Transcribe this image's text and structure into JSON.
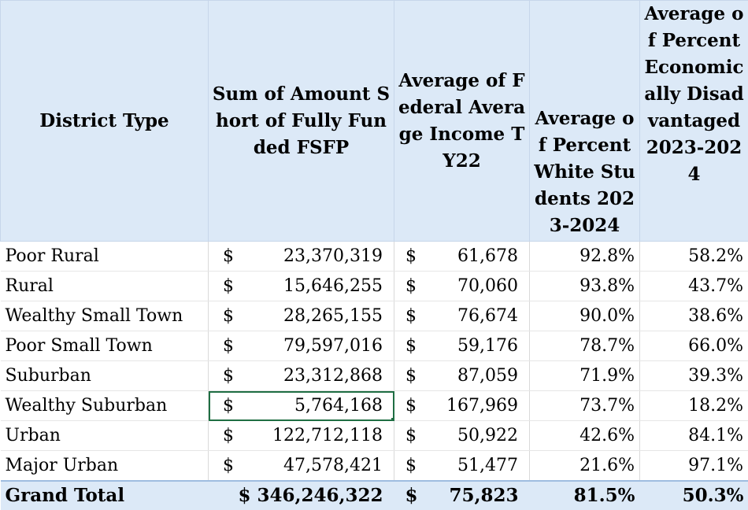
{
  "headers": {
    "district_type": "District Type",
    "sum_short": "Sum of Amount Short of Fully Funded FSFP",
    "avg_income": "Average of Federal Average Income TY22",
    "pct_white": "Average of Percent White Students 2023-2024",
    "pct_econ": "Average of Percent Economically Disadvantaged 2023-2024"
  },
  "currency_symbol": "$",
  "rows": [
    {
      "name": "Poor Rural",
      "sum": "23,370,319",
      "income": "61,678",
      "white": "92.8%",
      "econ": "58.2%"
    },
    {
      "name": "Rural",
      "sum": "15,646,255",
      "income": "70,060",
      "white": "93.8%",
      "econ": "43.7%"
    },
    {
      "name": "Wealthy Small Town",
      "sum": "28,265,155",
      "income": "76,674",
      "white": "90.0%",
      "econ": "38.6%"
    },
    {
      "name": "Poor Small Town",
      "sum": "79,597,016",
      "income": "59,176",
      "white": "78.7%",
      "econ": "66.0%"
    },
    {
      "name": "Suburban",
      "sum": "23,312,868",
      "income": "87,059",
      "white": "71.9%",
      "econ": "39.3%"
    },
    {
      "name": "Wealthy Suburban",
      "sum": "5,764,168",
      "income": "167,969",
      "white": "73.7%",
      "econ": "18.2%"
    },
    {
      "name": "Urban",
      "sum": "122,712,118",
      "income": "50,922",
      "white": "42.6%",
      "econ": "84.1%"
    },
    {
      "name": "Major Urban",
      "sum": "47,578,421",
      "income": "51,477",
      "white": "21.6%",
      "econ": "97.1%"
    }
  ],
  "total": {
    "name": "Grand Total",
    "sum": "$ 346,246,322",
    "income": "75,823",
    "white": "81.5%",
    "econ": "50.3%"
  },
  "colors": {
    "header_bg": "#dce9f7",
    "selection": "#1f6e43"
  }
}
